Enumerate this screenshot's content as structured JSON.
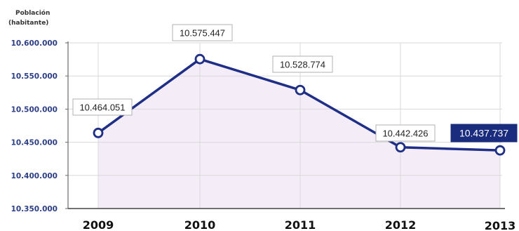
{
  "chart_data": {
    "type": "area",
    "title_line1": "Población",
    "title_line2": "(habitante)",
    "categories": [
      "2009",
      "2010",
      "2011",
      "2012",
      "2013"
    ],
    "values": [
      10464051,
      10575447,
      10528774,
      10442426,
      10437737
    ],
    "data_labels": [
      "10.464.051",
      "10.575.447",
      "10.528.774",
      "10.442.426",
      "10.437.737"
    ],
    "highlight_index": 4,
    "ylim": [
      10350000,
      10600000
    ],
    "yticks": [
      {
        "value": 10600000,
        "label": "10.600.000"
      },
      {
        "value": 10550000,
        "label": "10.550.000"
      },
      {
        "value": 10500000,
        "label": "10.500.000"
      },
      {
        "value": 10450000,
        "label": "10.450.000"
      },
      {
        "value": 10400000,
        "label": "10.400.000"
      },
      {
        "value": 10350000,
        "label": "10.350.000"
      }
    ],
    "grid": true,
    "colors": {
      "line": "#1f2e86",
      "fill": "#f4edf8",
      "grid": "#d8d8d8",
      "highlight_box": "#1a2c7e",
      "tick_label": "#2c3f86"
    }
  }
}
